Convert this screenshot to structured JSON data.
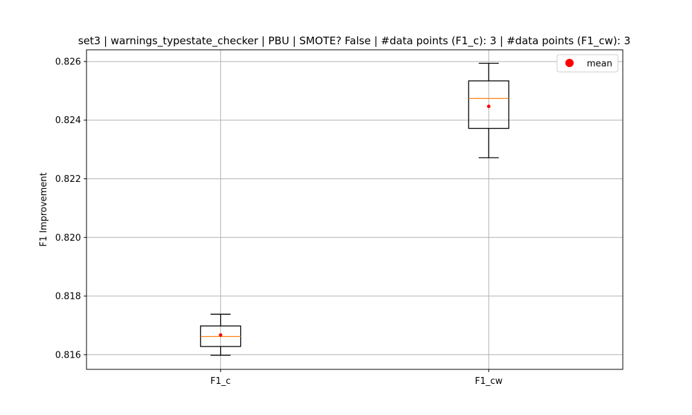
{
  "chart_data": {
    "type": "box",
    "title": "set3 | warnings_typestate_checker | PBU | SMOTE? False | #data points (F1_c): 3 | #data points (F1_cw): 3",
    "xlabel": "",
    "ylabel": "F1 Improvement",
    "ylim": [
      0.8155,
      0.8264
    ],
    "yticks": [
      0.816,
      0.818,
      0.82,
      0.822,
      0.824,
      0.826
    ],
    "ytick_labels": [
      "0.816",
      "0.818",
      "0.820",
      "0.822",
      "0.824",
      "0.826"
    ],
    "categories": [
      "F1_c",
      "F1_cw"
    ],
    "boxes": [
      {
        "label": "F1_c",
        "whislo": 0.81598,
        "q1": 0.81628,
        "median": 0.81662,
        "q3": 0.81698,
        "whishi": 0.81738,
        "mean": 0.81667
      },
      {
        "label": "F1_cw",
        "whislo": 0.82272,
        "q1": 0.82372,
        "median": 0.82474,
        "q3": 0.82534,
        "whishi": 0.82594,
        "mean": 0.82447
      }
    ],
    "grid": true,
    "legend": {
      "position": "top-right",
      "entries": [
        {
          "label": "mean",
          "marker": "circle",
          "color": "#ff0000"
        }
      ]
    },
    "colors": {
      "box": "#000000",
      "median": "#ff7f0e",
      "mean": "#ff0000",
      "grid": "#b0b0b0"
    }
  }
}
